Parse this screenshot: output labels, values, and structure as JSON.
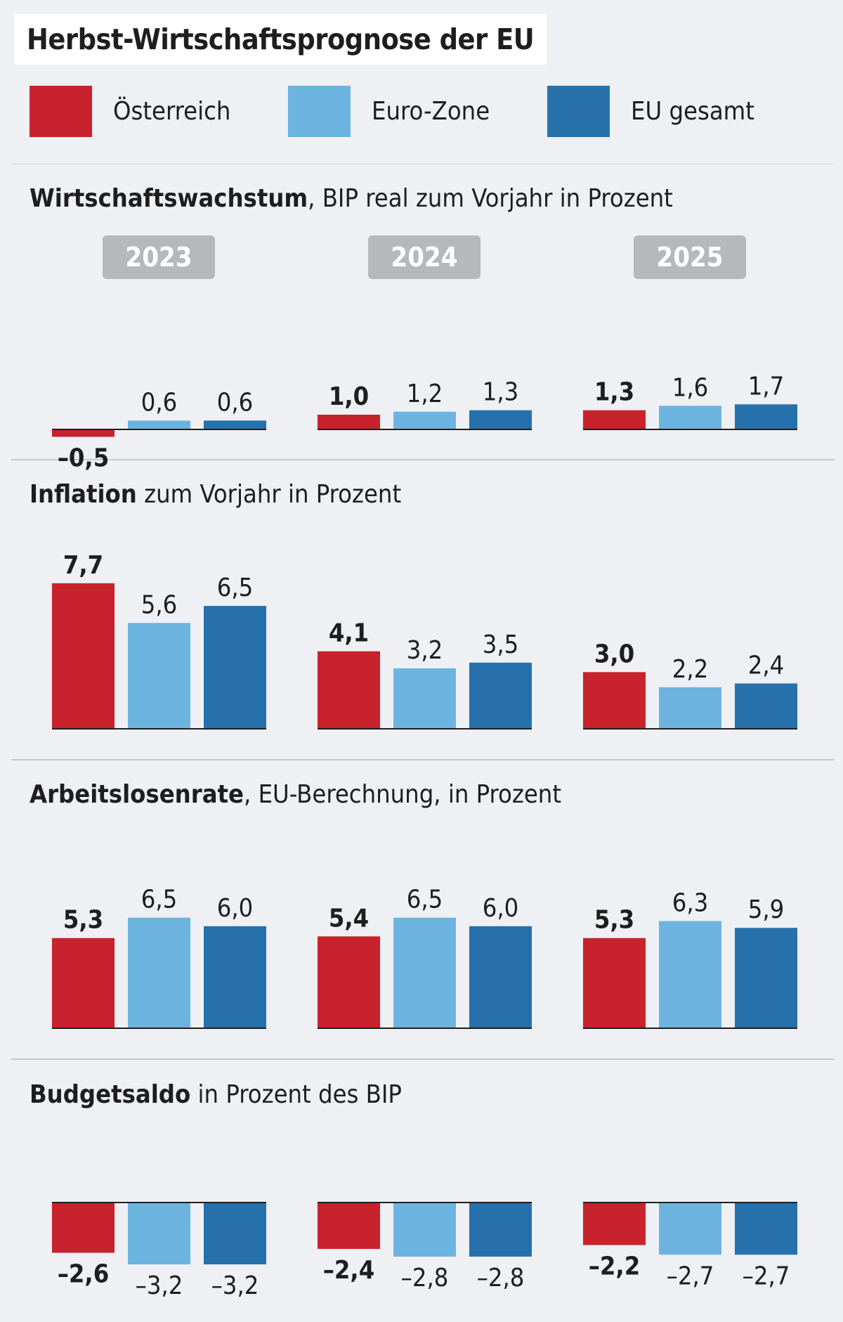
{
  "title": "Herbst-Wirtschaftsprognose der EU",
  "legend": [
    {
      "label": "Österreich",
      "color": "#c8222c"
    },
    {
      "label": "Euro-Zone",
      "color": "#6cb4e0"
    },
    {
      "label": "EU gesamt",
      "color": "#2671ab"
    }
  ],
  "years": [
    "2023",
    "2024",
    "2025"
  ],
  "sections": [
    {
      "bold": "Wirtschaftswachstum",
      "rest": ", BIP real zum Vorjahr in Prozent"
    },
    {
      "bold": "Inflation",
      "rest": " zum Vorjahr in Prozent"
    },
    {
      "bold": "Arbeitslosenrate",
      "rest": ", EU-Berechnung, in Prozent"
    },
    {
      "bold": "Budgetsaldo",
      "rest": " in Prozent des BIP"
    }
  ],
  "chart_data": [
    {
      "type": "bar",
      "title": "Wirtschaftswachstum, BIP real zum Vorjahr in Prozent",
      "categories": [
        "2023",
        "2024",
        "2025"
      ],
      "series": [
        {
          "name": "Österreich",
          "values": [
            -0.5,
            1.0,
            1.3
          ],
          "labels": [
            "–0,5",
            "1,0",
            "1,3"
          ]
        },
        {
          "name": "Euro-Zone",
          "values": [
            0.6,
            1.2,
            1.6
          ],
          "labels": [
            "0,6",
            "1,2",
            "1,6"
          ]
        },
        {
          "name": "EU gesamt",
          "values": [
            0.6,
            1.3,
            1.7
          ],
          "labels": [
            "0,6",
            "1,3",
            "1,7"
          ]
        }
      ]
    },
    {
      "type": "bar",
      "title": "Inflation zum Vorjahr in Prozent",
      "categories": [
        "2023",
        "2024",
        "2025"
      ],
      "series": [
        {
          "name": "Österreich",
          "values": [
            7.7,
            4.1,
            3.0
          ],
          "labels": [
            "7,7",
            "4,1",
            "3,0"
          ]
        },
        {
          "name": "Euro-Zone",
          "values": [
            5.6,
            3.2,
            2.2
          ],
          "labels": [
            "5,6",
            "3,2",
            "2,2"
          ]
        },
        {
          "name": "EU gesamt",
          "values": [
            6.5,
            3.5,
            2.4
          ],
          "labels": [
            "6,5",
            "3,5",
            "2,4"
          ]
        }
      ]
    },
    {
      "type": "bar",
      "title": "Arbeitslosenrate, EU-Berechnung, in Prozent",
      "categories": [
        "2023",
        "2024",
        "2025"
      ],
      "series": [
        {
          "name": "Österreich",
          "values": [
            5.3,
            5.4,
            5.3
          ],
          "labels": [
            "5,3",
            "5,4",
            "5,3"
          ]
        },
        {
          "name": "Euro-Zone",
          "values": [
            6.5,
            6.5,
            6.3
          ],
          "labels": [
            "6,5",
            "6,5",
            "6,3"
          ]
        },
        {
          "name": "EU gesamt",
          "values": [
            6.0,
            6.0,
            5.9
          ],
          "labels": [
            "6,0",
            "6,0",
            "5,9"
          ]
        }
      ]
    },
    {
      "type": "bar",
      "title": "Budgetsaldo in Prozent des BIP",
      "categories": [
        "2023",
        "2024",
        "2025"
      ],
      "series": [
        {
          "name": "Österreich",
          "values": [
            -2.6,
            -2.4,
            -2.2
          ],
          "labels": [
            "–2,6",
            "–2,4",
            "–2,2"
          ]
        },
        {
          "name": "Euro-Zone",
          "values": [
            -3.2,
            -2.8,
            -2.7
          ],
          "labels": [
            "–3,2",
            "–2,8",
            "–2,7"
          ]
        },
        {
          "name": "EU gesamt",
          "values": [
            -3.2,
            -2.8,
            -2.7
          ],
          "labels": [
            "–3,2",
            "–2,8",
            "–2,7"
          ]
        }
      ]
    }
  ]
}
